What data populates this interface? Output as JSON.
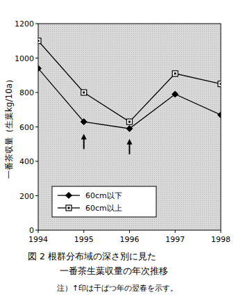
{
  "chart_data": {
    "type": "line",
    "title": "図 2 根群分布域の深さ別に見た",
    "subtitle": "一番茶生葉収量の年次推移",
    "note": "注）↑印は干ばつ年の翌春を示す。",
    "y_label": "一番茶収量（生葉kg/10a）",
    "x": [
      1994,
      1995,
      1996,
      1997,
      1998
    ],
    "series": [
      {
        "name": "60cm以下",
        "color": "#000000",
        "marker": "diamond",
        "values": [
          940,
          630,
          590,
          790,
          670
        ]
      },
      {
        "name": "60cm以上",
        "color": "#000000",
        "marker": "square",
        "values": [
          1100,
          800,
          630,
          910,
          850
        ]
      }
    ],
    "annotations": [
      {
        "x": 1995,
        "y": 560
      },
      {
        "x": 1996,
        "y": 530
      }
    ],
    "xlim": [
      1994,
      1998
    ],
    "xticks": [
      1994,
      1995,
      1996,
      1997,
      1998
    ],
    "ylim": [
      0,
      1200
    ],
    "yticks": [
      0,
      200,
      400,
      600,
      800,
      1000,
      1200
    ],
    "grid": false,
    "legend": "lower left"
  }
}
